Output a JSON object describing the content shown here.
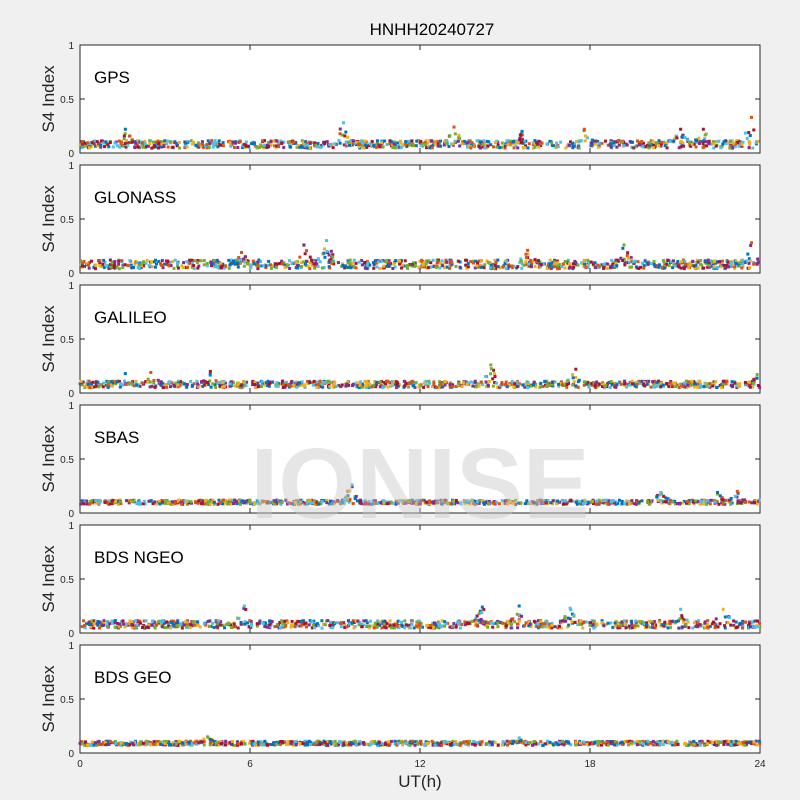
{
  "chart_data": {
    "type": "scatter",
    "title": "HNHH20240727",
    "xlabel": "UT(h)",
    "ylabel": "S4 Index",
    "xlim": [
      0,
      24
    ],
    "ylim": [
      0,
      1
    ],
    "xticks": [
      "0",
      "6",
      "12",
      "18",
      "24"
    ],
    "yticks": [
      "0",
      "0.5",
      "1"
    ],
    "watermark": "IONISE",
    "series_colors": [
      "#0072BD",
      "#D95319",
      "#EDB120",
      "#7E2F8E",
      "#77AC30",
      "#4DBEEE",
      "#A2142F"
    ],
    "panels": [
      {
        "name": "GPS",
        "baseline": 0.08,
        "spread": 0.035,
        "events": [
          {
            "x": 1.6,
            "y": 0.22
          },
          {
            "x": 9.3,
            "y": 0.28
          },
          {
            "x": 13.2,
            "y": 0.24
          },
          {
            "x": 15.6,
            "y": 0.2
          },
          {
            "x": 17.8,
            "y": 0.22
          },
          {
            "x": 21.2,
            "y": 0.22
          },
          {
            "x": 22.0,
            "y": 0.22
          },
          {
            "x": 23.7,
            "y": 0.33
          }
        ]
      },
      {
        "name": "GLONASS",
        "baseline": 0.08,
        "spread": 0.04,
        "events": [
          {
            "x": 5.7,
            "y": 0.19
          },
          {
            "x": 7.9,
            "y": 0.26
          },
          {
            "x": 8.7,
            "y": 0.3
          },
          {
            "x": 15.8,
            "y": 0.21
          },
          {
            "x": 19.2,
            "y": 0.26
          },
          {
            "x": 23.7,
            "y": 0.28
          }
        ]
      },
      {
        "name": "GALILEO",
        "baseline": 0.08,
        "spread": 0.03,
        "events": [
          {
            "x": 1.6,
            "y": 0.18
          },
          {
            "x": 2.5,
            "y": 0.19
          },
          {
            "x": 4.6,
            "y": 0.2
          },
          {
            "x": 14.5,
            "y": 0.26
          },
          {
            "x": 17.5,
            "y": 0.22
          },
          {
            "x": 23.9,
            "y": 0.17
          }
        ]
      },
      {
        "name": "SBAS",
        "baseline": 0.1,
        "spread": 0.02,
        "events": [
          {
            "x": 9.6,
            "y": 0.26
          },
          {
            "x": 20.5,
            "y": 0.19
          },
          {
            "x": 22.5,
            "y": 0.19
          },
          {
            "x": 23.2,
            "y": 0.2
          }
        ]
      },
      {
        "name": "BDS NGEO",
        "baseline": 0.08,
        "spread": 0.035,
        "events": [
          {
            "x": 5.8,
            "y": 0.25
          },
          {
            "x": 14.2,
            "y": 0.24
          },
          {
            "x": 15.5,
            "y": 0.25
          },
          {
            "x": 17.3,
            "y": 0.23
          },
          {
            "x": 21.2,
            "y": 0.22
          },
          {
            "x": 22.7,
            "y": 0.22
          }
        ]
      },
      {
        "name": "BDS GEO",
        "baseline": 0.09,
        "spread": 0.02,
        "events": [
          {
            "x": 4.5,
            "y": 0.15
          },
          {
            "x": 15.5,
            "y": 0.14
          }
        ]
      }
    ]
  }
}
